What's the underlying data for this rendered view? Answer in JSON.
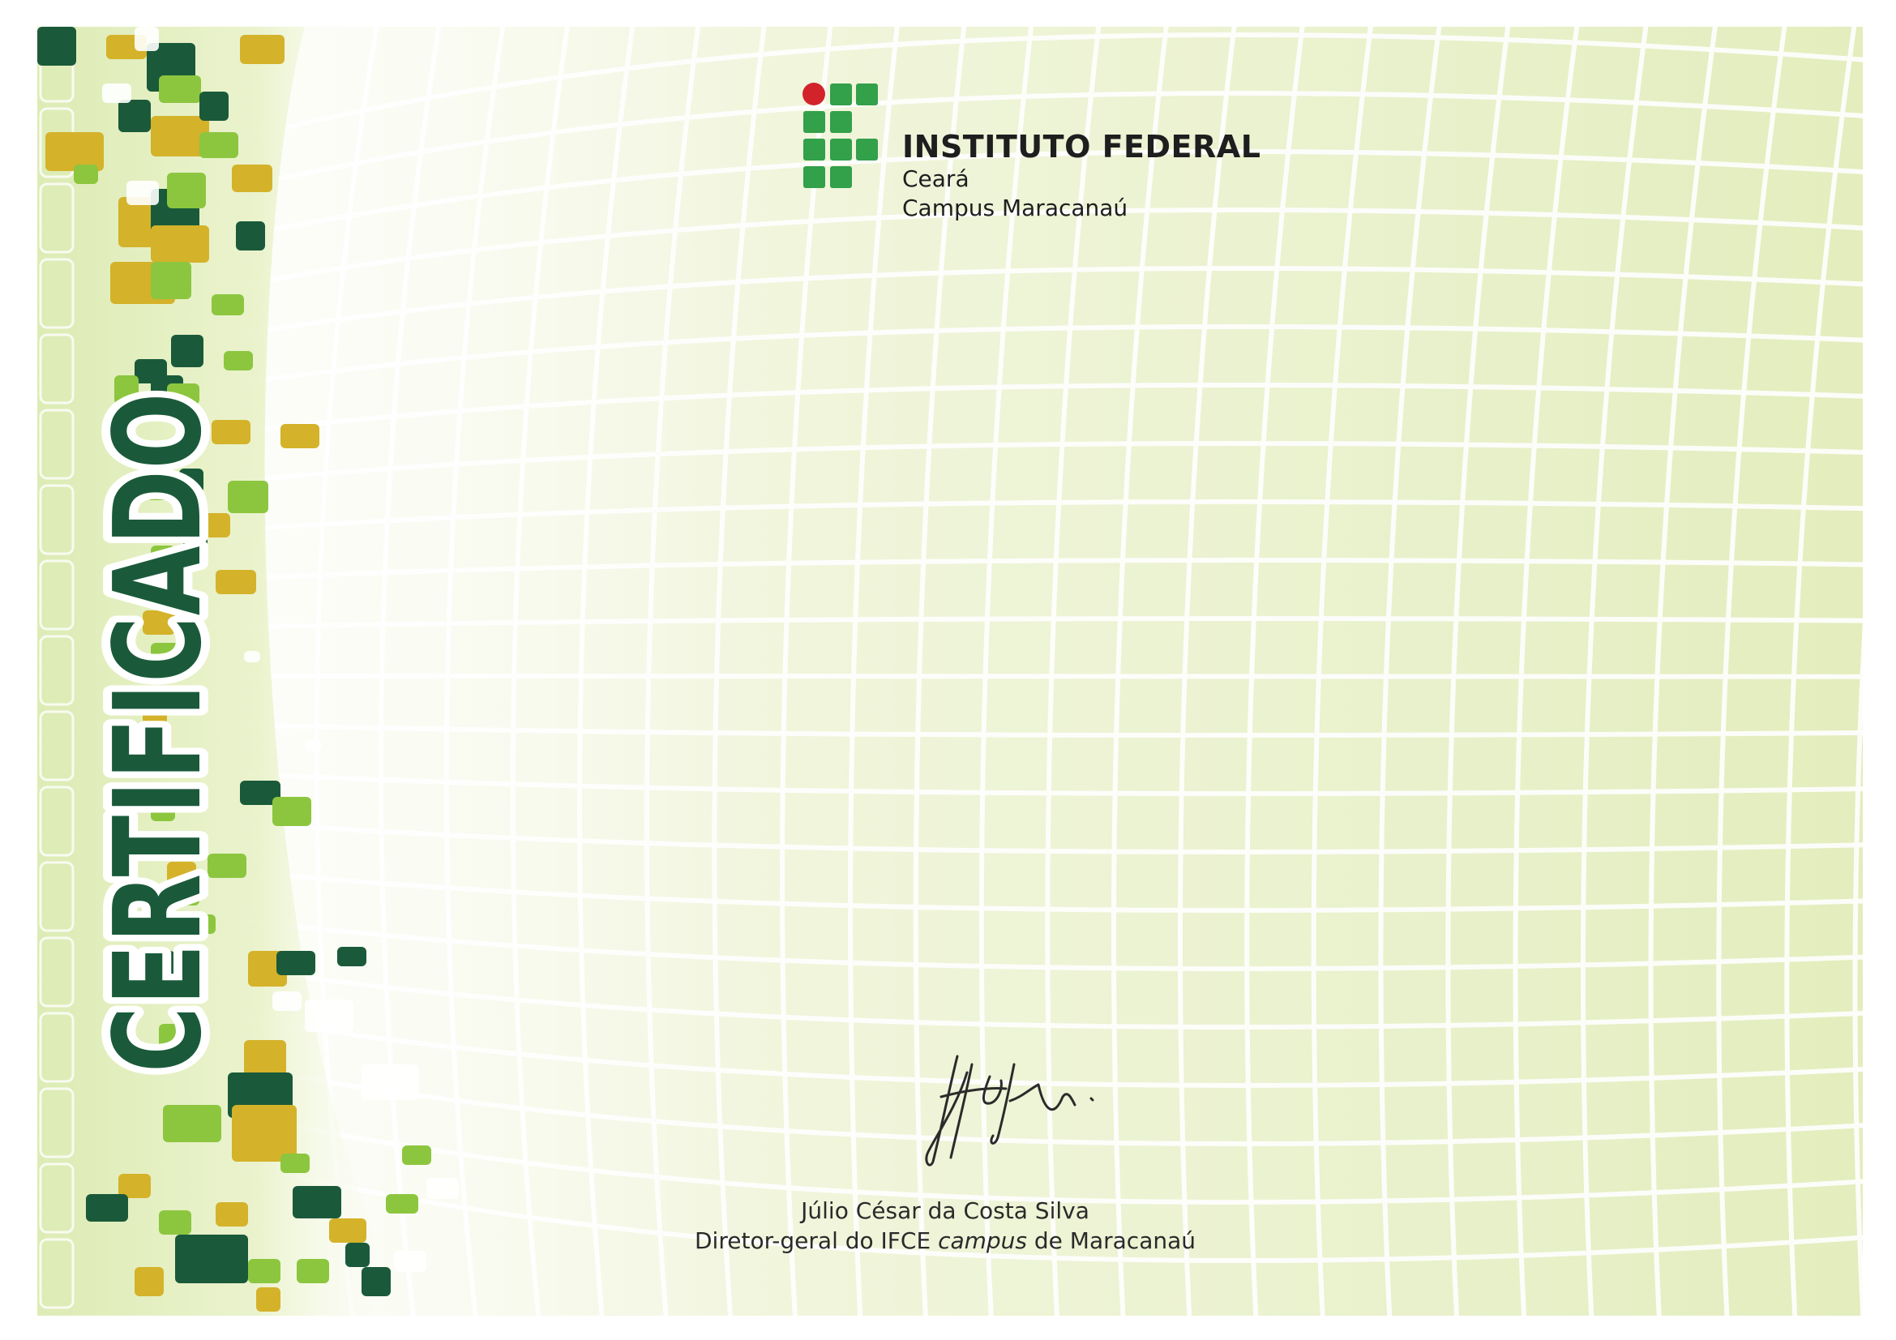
{
  "certificate": {
    "title": "CERTIFICADO"
  },
  "institution": {
    "name": "INSTITUTO FEDERAL",
    "state": "Ceará",
    "campus": "Campus Maracanaú"
  },
  "signature": {
    "name": "Júlio César da Costa Silva",
    "role_prefix": "Diretor-geral do IFCE",
    "role_italic": "campus",
    "role_suffix": "de Maracanaú"
  },
  "colors": {
    "dark_green": "#1a5a3a",
    "mid_green": "#33a04a",
    "light_green": "#8cc63f",
    "gold": "#d4b22a",
    "logo_red": "#d2232a",
    "background": "#eef4d8"
  }
}
